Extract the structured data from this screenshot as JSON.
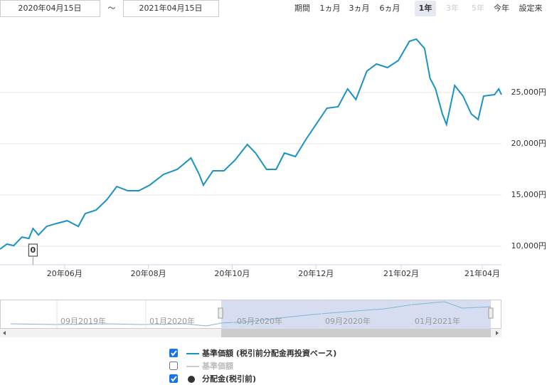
{
  "controls": {
    "start_date": "2020年04月15日",
    "separator": "〜",
    "end_date": "2021年04月15日",
    "period_label": "期間",
    "ranges": [
      "1ヵ月",
      "3ヵ月",
      "6ヵ月",
      "1年",
      "3年",
      "5年",
      "今年",
      "設定来"
    ]
  },
  "chart_data": {
    "type": "line",
    "x": [
      0,
      5,
      10,
      16,
      21,
      24,
      28,
      34,
      41,
      49,
      57,
      62,
      70,
      78,
      85,
      93,
      101,
      109,
      119,
      129,
      139,
      145,
      148,
      155,
      163,
      171,
      180,
      186,
      194,
      201,
      207,
      215,
      223,
      230,
      238,
      246,
      253,
      259,
      267,
      274,
      282,
      290,
      298,
      303,
      309,
      313,
      317,
      322,
      325,
      331,
      337,
      343,
      348,
      352,
      360,
      363,
      365
    ],
    "series": [
      {
        "name": "基準価額 (税引前分配金再投資ベース)",
        "color": "#1a93c2",
        "values": [
          9720,
          10210,
          10070,
          10900,
          10760,
          11740,
          11110,
          11940,
          12220,
          12500,
          11940,
          13190,
          13540,
          14580,
          15830,
          15420,
          15420,
          15970,
          17010,
          17500,
          18610,
          17010,
          15970,
          17360,
          17360,
          18400,
          19930,
          19100,
          17500,
          17500,
          19100,
          18750,
          20490,
          21880,
          23470,
          23610,
          25350,
          24310,
          27080,
          27780,
          27430,
          28130,
          30000,
          30210,
          29310,
          26390,
          25350,
          22920,
          21880,
          25690,
          24650,
          22920,
          22360,
          24650,
          24790,
          25350,
          24790
        ]
      }
    ],
    "xlim": [
      0,
      365
    ],
    "xticks": [
      {
        "value": 47,
        "label": "20年06月"
      },
      {
        "value": 108,
        "label": "20年08月"
      },
      {
        "value": 169,
        "label": "20年10月"
      },
      {
        "value": 230,
        "label": "20年12月"
      },
      {
        "value": 292,
        "label": "21年02月"
      },
      {
        "value": 351,
        "label": "21年04月"
      }
    ],
    "ylim": [
      8200,
      30900
    ],
    "yticks": [
      {
        "value": 10000,
        "label": "10,000円"
      },
      {
        "value": 15000,
        "label": "15,000円"
      },
      {
        "value": 20000,
        "label": "20,000円"
      },
      {
        "value": 25000,
        "label": "25,000円"
      }
    ],
    "grid": true,
    "annotations": [
      {
        "x": 24,
        "text": "0"
      }
    ]
  },
  "navigator": {
    "labels": [
      "09月2019年",
      "01月2020年",
      "05月2020年",
      "09月2020年",
      "01月2021年"
    ]
  },
  "legend_items": [
    "基準価額",
    "分配金(税引前)"
  ]
}
